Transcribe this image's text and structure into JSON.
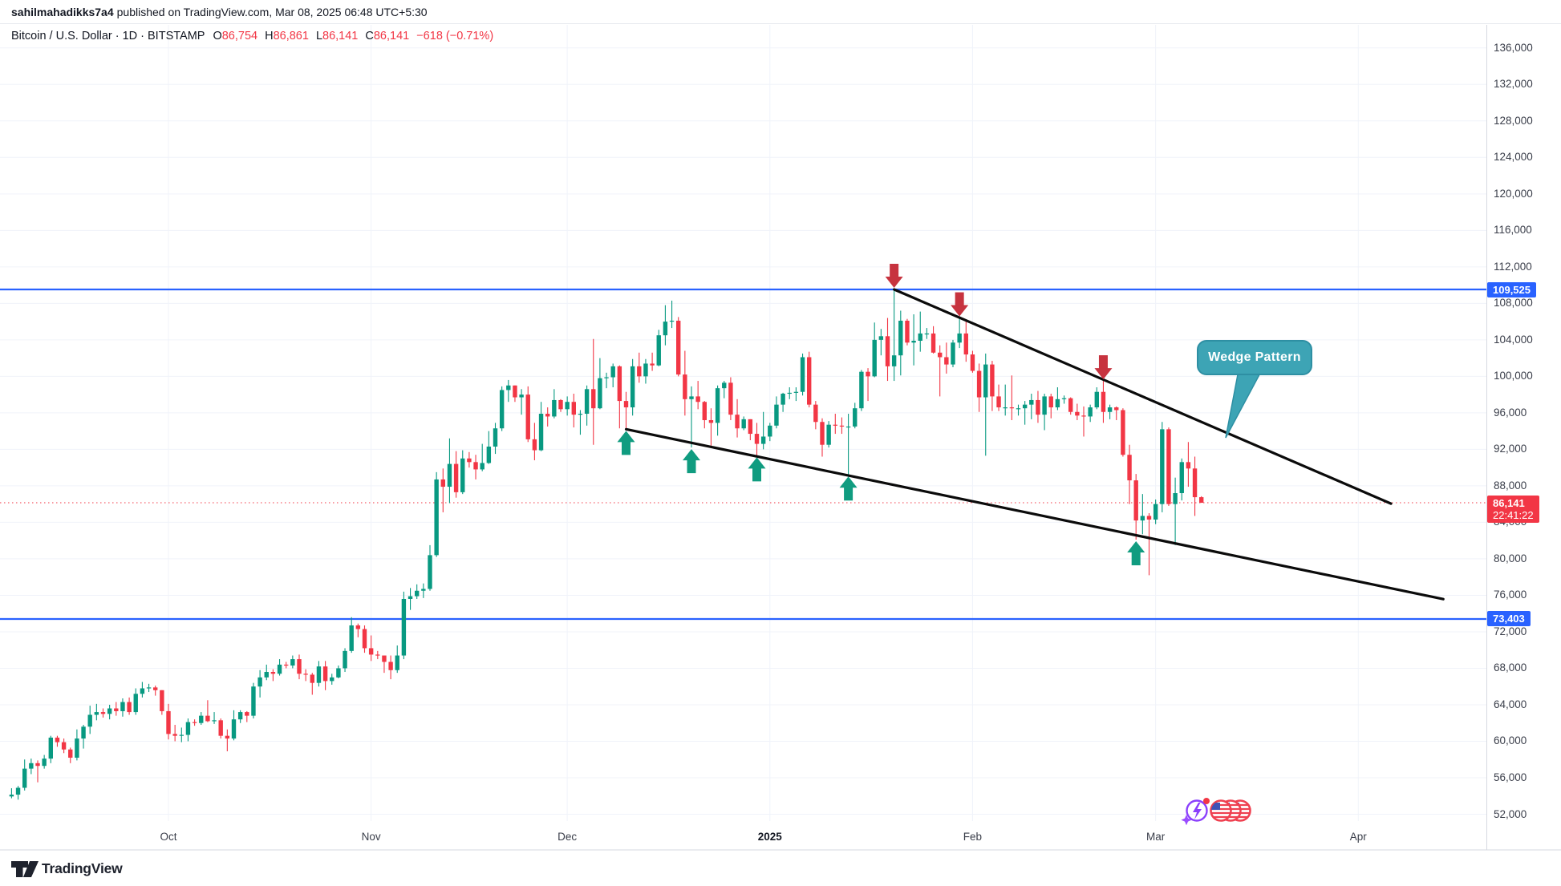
{
  "top_bar": {
    "username": "sahilmahadikks7a4",
    "publish_info": "published on TradingView.com, Mar 08, 2025 06:48 UTC+5:30"
  },
  "legend": {
    "symbol_line": "Bitcoin / U.S. Dollar · 1D · BITSTAMP",
    "o_label": "O",
    "o_value": "86,754",
    "h_label": "H",
    "h_value": "86,861",
    "l_label": "L",
    "l_value": "86,141",
    "c_label": "C",
    "c_value": "86,141",
    "change": "−618 (−0.71%)"
  },
  "annotations": {
    "wedge_label": "Wedge Pattern"
  },
  "price_tags": {
    "resistance": "109,525",
    "support": "73,403",
    "last_price": "86,141",
    "countdown": "22:41:22"
  },
  "footer": {
    "brand": "TradingView"
  },
  "colors": {
    "up": "#089981",
    "down": "#f23645",
    "arrow_up": "#109c80",
    "arrow_down": "#c7333f",
    "level_blue": "#2962ff",
    "last_line": "#f23645",
    "grid": "#f0f3fa",
    "trendline": "#0b0b0b",
    "axis_border": "#d6d9e0",
    "callout": "#3da4b5"
  },
  "chart_data": {
    "type": "candlestick",
    "symbol": "Bitcoin / U.S. Dollar",
    "interval": "1D",
    "exchange": "BITSTAMP",
    "start_date": "2024-09-07",
    "last_price": {
      "price": 86141,
      "label": "86,141",
      "countdown": "22:41:22"
    },
    "horizontal_levels": [
      {
        "price": 109525,
        "label": "109,525"
      },
      {
        "price": 73403,
        "label": "73,403"
      }
    ],
    "trendlines": [
      {
        "name": "wedge-upper",
        "from_day": 135,
        "from_price": 109525,
        "to_day": 211,
        "to_price": 86050
      },
      {
        "name": "wedge-lower",
        "from_day": 94,
        "from_price": 94200,
        "to_day": 219,
        "to_price": 75580
      }
    ],
    "markers": {
      "down_arrow_days": [
        135,
        145,
        167
      ],
      "up_arrow_days": [
        94,
        104,
        114,
        128,
        172
      ]
    },
    "price_axis": {
      "min_tick": 52000,
      "max_tick": 136000,
      "step": 4000
    },
    "time_axis": {
      "months": [
        {
          "label": "Oct",
          "day": 24
        },
        {
          "label": "Nov",
          "day": 55
        },
        {
          "label": "Dec",
          "day": 85
        },
        {
          "label": "2025",
          "day": 116,
          "bold": true
        },
        {
          "label": "Feb",
          "day": 147
        },
        {
          "label": "Mar",
          "day": 175
        },
        {
          "label": "Apr",
          "day": 206
        }
      ]
    },
    "ohlc": [
      [
        53950,
        54850,
        53750,
        54150
      ],
      [
        54150,
        55100,
        53600,
        54900
      ],
      [
        54900,
        58000,
        54600,
        57000
      ],
      [
        57000,
        58100,
        56400,
        57600
      ],
      [
        57600,
        57900,
        55500,
        57300
      ],
      [
        57300,
        58500,
        57000,
        58100
      ],
      [
        58100,
        60600,
        57600,
        60400
      ],
      [
        60400,
        60600,
        59400,
        59900
      ],
      [
        59900,
        60300,
        58700,
        59100
      ],
      [
        59100,
        59300,
        57600,
        58200
      ],
      [
        58200,
        61300,
        57900,
        60300
      ],
      [
        60300,
        61800,
        59200,
        61600
      ],
      [
        61600,
        63900,
        60800,
        62900
      ],
      [
        62900,
        64100,
        62300,
        63200
      ],
      [
        63200,
        63600,
        62600,
        63000
      ],
      [
        63000,
        64000,
        62400,
        63600
      ],
      [
        63600,
        64300,
        62800,
        63300
      ],
      [
        63300,
        64700,
        62700,
        64300
      ],
      [
        64300,
        64800,
        62900,
        63200
      ],
      [
        63200,
        65800,
        62900,
        65200
      ],
      [
        65200,
        66500,
        64800,
        65800
      ],
      [
        65800,
        66300,
        65400,
        65900
      ],
      [
        65900,
        66100,
        65000,
        65600
      ],
      [
        65600,
        65600,
        62900,
        63300
      ],
      [
        63300,
        64100,
        60200,
        60800
      ],
      [
        60800,
        61800,
        60000,
        60600
      ],
      [
        60600,
        61500,
        59900,
        60700
      ],
      [
        60700,
        62500,
        60000,
        62100
      ],
      [
        62100,
        62400,
        61700,
        62000
      ],
      [
        62000,
        63200,
        61800,
        62800
      ],
      [
        62800,
        64500,
        62100,
        62200
      ],
      [
        62200,
        63200,
        61900,
        62300
      ],
      [
        62300,
        62500,
        60300,
        60600
      ],
      [
        60600,
        61300,
        58900,
        60300
      ],
      [
        60300,
        63400,
        60100,
        62400
      ],
      [
        62400,
        63400,
        62000,
        63200
      ],
      [
        63200,
        63300,
        62100,
        62800
      ],
      [
        62800,
        66400,
        62500,
        66000
      ],
      [
        66000,
        67800,
        64800,
        67000
      ],
      [
        67000,
        68400,
        66700,
        67600
      ],
      [
        67600,
        67900,
        66600,
        67400
      ],
      [
        67400,
        69000,
        67200,
        68400
      ],
      [
        68400,
        68700,
        68000,
        68300
      ],
      [
        68300,
        69400,
        68000,
        69000
      ],
      [
        69000,
        69500,
        66800,
        67400
      ],
      [
        67400,
        67900,
        66600,
        67300
      ],
      [
        67300,
        67500,
        65100,
        66400
      ],
      [
        66400,
        68800,
        66000,
        68200
      ],
      [
        68200,
        68800,
        65600,
        66600
      ],
      [
        66600,
        67400,
        66200,
        67000
      ],
      [
        67000,
        68300,
        66900,
        68000
      ],
      [
        68000,
        70200,
        67600,
        69900
      ],
      [
        69900,
        73600,
        69700,
        72700
      ],
      [
        72700,
        72900,
        71400,
        72300
      ],
      [
        72300,
        72700,
        69700,
        70200
      ],
      [
        70200,
        71600,
        68800,
        69500
      ],
      [
        69500,
        69900,
        69000,
        69400
      ],
      [
        69400,
        69400,
        67500,
        68700
      ],
      [
        68700,
        69400,
        66800,
        67800
      ],
      [
        67800,
        70500,
        67500,
        69400
      ],
      [
        69400,
        76400,
        69000,
        75600
      ],
      [
        75600,
        76800,
        74400,
        75900
      ],
      [
        75900,
        77200,
        75600,
        76500
      ],
      [
        76500,
        77300,
        75700,
        76700
      ],
      [
        76700,
        81500,
        76500,
        80400
      ],
      [
        80400,
        89500,
        80200,
        88700
      ],
      [
        88700,
        89900,
        85100,
        87900
      ],
      [
        87900,
        93200,
        86100,
        90400
      ],
      [
        90400,
        91800,
        86700,
        87300
      ],
      [
        87300,
        91900,
        87100,
        91000
      ],
      [
        91000,
        91700,
        90000,
        90600
      ],
      [
        90600,
        91400,
        88700,
        89800
      ],
      [
        89800,
        92600,
        89600,
        90500
      ],
      [
        90500,
        94000,
        90400,
        92300
      ],
      [
        92300,
        94900,
        91500,
        94300
      ],
      [
        94300,
        98900,
        94000,
        98500
      ],
      [
        98500,
        99600,
        97200,
        99000
      ],
      [
        99000,
        99000,
        97200,
        97700
      ],
      [
        97700,
        98600,
        95800,
        98000
      ],
      [
        98000,
        98900,
        92800,
        93100
      ],
      [
        93100,
        94900,
        90800,
        91900
      ],
      [
        91900,
        97200,
        91800,
        95900
      ],
      [
        95900,
        96600,
        94500,
        95600
      ],
      [
        95600,
        98600,
        95400,
        97400
      ],
      [
        97400,
        97500,
        96100,
        96400
      ],
      [
        96400,
        97800,
        95700,
        97200
      ],
      [
        97200,
        98100,
        94400,
        95800
      ],
      [
        95800,
        96300,
        93600,
        95900
      ],
      [
        95900,
        99000,
        94600,
        98600
      ],
      [
        98600,
        104100,
        92500,
        96500
      ],
      [
        96500,
        102000,
        96400,
        99800
      ],
      [
        99800,
        100400,
        98700,
        99900
      ],
      [
        99900,
        101400,
        98800,
        101100
      ],
      [
        101100,
        101200,
        94300,
        97300
      ],
      [
        97300,
        98300,
        94200,
        96600
      ],
      [
        96600,
        101900,
        95700,
        101100
      ],
      [
        101100,
        102600,
        99300,
        100000
      ],
      [
        100000,
        101900,
        99200,
        101400
      ],
      [
        101400,
        102600,
        100600,
        101200
      ],
      [
        101200,
        105100,
        101100,
        104500
      ],
      [
        104500,
        107800,
        103400,
        106000
      ],
      [
        106000,
        108300,
        105300,
        106100
      ],
      [
        106100,
        106500,
        100000,
        100200
      ],
      [
        100200,
        102800,
        95700,
        97500
      ],
      [
        97500,
        98900,
        92200,
        97800
      ],
      [
        97800,
        99500,
        96400,
        97200
      ],
      [
        97200,
        97300,
        94300,
        95200
      ],
      [
        95200,
        96500,
        92400,
        94900
      ],
      [
        94900,
        99000,
        93500,
        98700
      ],
      [
        98700,
        99500,
        97600,
        99300
      ],
      [
        99300,
        99900,
        95200,
        95800
      ],
      [
        95800,
        97500,
        93300,
        94300
      ],
      [
        94300,
        95600,
        94100,
        95300
      ],
      [
        95300,
        95300,
        93000,
        93700
      ],
      [
        93700,
        94900,
        91300,
        92600
      ],
      [
        92600,
        96100,
        92000,
        93400
      ],
      [
        93400,
        94900,
        92900,
        94600
      ],
      [
        94600,
        97800,
        94300,
        96900
      ],
      [
        96900,
        98200,
        96100,
        98100
      ],
      [
        98100,
        98800,
        97500,
        98200
      ],
      [
        98200,
        98800,
        97300,
        98300
      ],
      [
        98300,
        102500,
        97900,
        102100
      ],
      [
        102100,
        102700,
        96600,
        96900
      ],
      [
        96900,
        97300,
        94200,
        95000
      ],
      [
        95000,
        95400,
        91200,
        92500
      ],
      [
        92500,
        95100,
        92200,
        94700
      ],
      [
        94700,
        95900,
        93700,
        94600
      ],
      [
        94600,
        95500,
        93700,
        94500
      ],
      [
        94500,
        95900,
        89200,
        94500
      ],
      [
        94500,
        97100,
        94300,
        96500
      ],
      [
        96500,
        100700,
        96200,
        100500
      ],
      [
        100500,
        100900,
        97300,
        100000
      ],
      [
        100000,
        105900,
        99900,
        104000
      ],
      [
        104000,
        105200,
        102300,
        104400
      ],
      [
        104400,
        106400,
        99500,
        101100
      ],
      [
        101100,
        109525,
        99500,
        102300
      ],
      [
        102300,
        107200,
        100100,
        106100
      ],
      [
        106100,
        106300,
        103400,
        103700
      ],
      [
        103700,
        106800,
        101200,
        103900
      ],
      [
        103900,
        107100,
        102700,
        104700
      ],
      [
        104700,
        105300,
        104100,
        104700
      ],
      [
        104700,
        105500,
        102500,
        102600
      ],
      [
        102600,
        103400,
        97800,
        102100
      ],
      [
        102100,
        103700,
        100300,
        101300
      ],
      [
        101300,
        104000,
        101000,
        103700
      ],
      [
        103700,
        106400,
        103100,
        104700
      ],
      [
        104700,
        106000,
        101600,
        102400
      ],
      [
        102400,
        102800,
        100400,
        100600
      ],
      [
        100600,
        101400,
        96100,
        97700
      ],
      [
        97700,
        102500,
        91300,
        101300
      ],
      [
        101300,
        101700,
        96200,
        97800
      ],
      [
        97800,
        99100,
        96200,
        96600
      ],
      [
        96600,
        99100,
        95700,
        96600
      ],
      [
        96600,
        100100,
        95200,
        96500
      ],
      [
        96500,
        96900,
        95700,
        96500
      ],
      [
        96500,
        97300,
        94700,
        96900
      ],
      [
        96900,
        98100,
        95300,
        97400
      ],
      [
        97400,
        98400,
        94900,
        95800
      ],
      [
        95800,
        98100,
        94100,
        97800
      ],
      [
        97800,
        98100,
        95400,
        96600
      ],
      [
        96600,
        98800,
        96300,
        97500
      ],
      [
        97500,
        97900,
        97000,
        97600
      ],
      [
        97600,
        97700,
        95800,
        96100
      ],
      [
        96100,
        97000,
        95200,
        95700
      ],
      [
        95700,
        96700,
        93400,
        95600
      ],
      [
        95600,
        96900,
        95000,
        96600
      ],
      [
        96600,
        98800,
        96400,
        98300
      ],
      [
        98300,
        99500,
        94900,
        96100
      ],
      [
        96100,
        96900,
        95300,
        96600
      ],
      [
        96600,
        96700,
        95200,
        96300
      ],
      [
        96300,
        96500,
        91200,
        91400
      ],
      [
        91400,
        92500,
        86000,
        88600
      ],
      [
        88600,
        89300,
        82100,
        84200
      ],
      [
        84200,
        87100,
        82700,
        84700
      ],
      [
        84700,
        85000,
        78200,
        84300
      ],
      [
        84300,
        86500,
        83800,
        86000
      ],
      [
        86000,
        95000,
        85100,
        94200
      ],
      [
        94200,
        94400,
        85800,
        86000
      ],
      [
        86000,
        88900,
        81500,
        87200
      ],
      [
        87200,
        91000,
        86400,
        90600
      ],
      [
        90600,
        92800,
        87900,
        89900
      ],
      [
        89900,
        91200,
        84700,
        86754
      ],
      [
        86754,
        86861,
        86141,
        86141
      ]
    ]
  }
}
